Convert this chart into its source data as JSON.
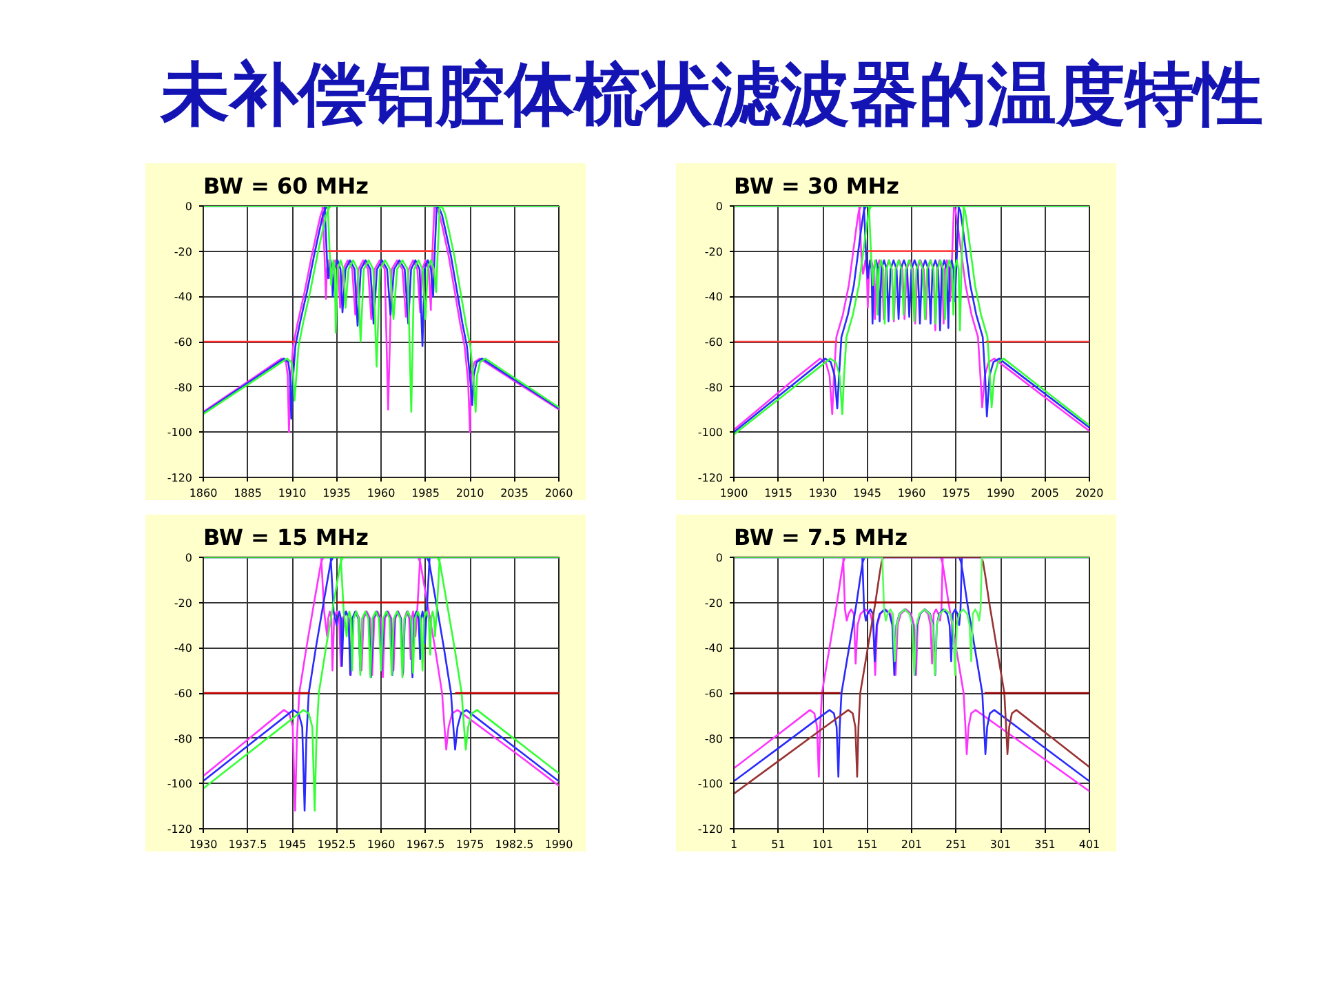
{
  "chart_data": [
    {
      "type": "line",
      "title": "未补偿铝腔体梳状滤波器的温度特性",
      "subtitle": "BW = 60 MHz",
      "xlim": [
        1860,
        2060
      ],
      "xticks": [
        1860,
        1885,
        1910,
        1935,
        1960,
        1985,
        2010,
        2035,
        2060
      ],
      "ylim": [
        -120,
        0
      ],
      "yticks": [
        0,
        -20,
        -40,
        -60,
        -80,
        -100,
        -120
      ],
      "grid": true,
      "series": [
        {
          "color": "#ff33ff",
          "x": [
            1860,
            1875,
            1890,
            1904,
            1906.5,
            1907.5,
            1908.2,
            1909,
            1910.5,
            1913,
            1917,
            1921,
            1924,
            1926,
            1927.5,
            1929,
            1990,
            1991.5,
            1993,
            1995,
            1998,
            2001.5,
            2004.5,
            2007,
            2009,
            2010,
            2010.8,
            2012.5,
            2015.5,
            2025,
            2040,
            2060
          ],
          "values": [
            -91,
            -83,
            -75,
            -67.5,
            -69,
            -75,
            -100,
            -78,
            -62,
            -52,
            -38,
            -22,
            -11,
            -4,
            -1,
            0,
            0,
            -1,
            -4,
            -11,
            -22,
            -38,
            -52,
            -62,
            -78,
            -100,
            -75,
            -69,
            -67.5,
            -72.3,
            -79.9,
            -90
          ]
        },
        {
          "color": "#ff33ff",
          "x": [
            1860,
            1927,
            1928.3,
            1929,
            1929.5,
            1930.25,
            1931,
            1931.5,
            1932.6,
            1934.25,
            1935.9,
            1937,
            1938.7,
            1941.25,
            1943.8,
            1945.5,
            1947.3,
            1950,
            1952.7,
            1954.5,
            1956.4,
            1959.25,
            1962.1,
            1964,
            1966,
            1969,
            1972,
            1974,
            1975.6,
            1978,
            1980.4,
            1982,
            1983.2,
            1985,
            1986.8,
            1988,
            1988.7,
            1990,
            2060
          ],
          "values": [
            0,
            0,
            -24,
            -41,
            -28,
            -24,
            -28,
            -32,
            -28,
            -24,
            -28,
            -45,
            -28,
            -24,
            -28,
            -48,
            -28,
            -24,
            -28,
            -50,
            -28,
            -24,
            -28,
            -90,
            -28,
            -24,
            -28,
            -49,
            -28,
            -24,
            -28,
            -47,
            -28,
            -24,
            -28,
            -46,
            -24,
            0,
            0
          ]
        },
        {
          "color": "#2a2aff",
          "x": [
            1860,
            1875,
            1890,
            1905.3,
            1907.8,
            1908.8,
            1909.5,
            1910.3,
            1911.8,
            1914.3,
            1918.3,
            1922.3,
            1925.3,
            1927.3,
            1928.8,
            1930.3,
            1991.3,
            1992.8,
            1994.3,
            1996.3,
            1999.3,
            2002.8,
            2005.8,
            2008.3,
            2010.3,
            2011.3,
            2012.1,
            2013.8,
            2016.8,
            2025,
            2040,
            2060
          ],
          "values": [
            -91.5,
            -83.5,
            -75.6,
            -67.5,
            -69,
            -75,
            -94,
            -78,
            -62,
            -52,
            -38,
            -22,
            -11,
            -4,
            -1,
            0,
            0,
            -1,
            -4,
            -11,
            -22,
            -38,
            -52,
            -62,
            -78,
            -88,
            -75,
            -69,
            -67.5,
            -71.7,
            -79.3,
            -89.5
          ]
        },
        {
          "color": "#2a2aff",
          "x": [
            1860,
            1928.3,
            1929.6,
            1930.3,
            1930.8,
            1931.55,
            1932.3,
            1932.8,
            1933.9,
            1935.55,
            1937.2,
            1938.3,
            1940,
            1942.55,
            1945.1,
            1946.8,
            1948.6,
            1951.3,
            1954,
            1955.8,
            1957.7,
            1960.55,
            1963.4,
            1965.3,
            1967.3,
            1970.3,
            1973.3,
            1975.3,
            1976.9,
            1979.3,
            1981.7,
            1983.3,
            1984.5,
            1986.3,
            1988.1,
            1989.3,
            1990,
            1991.3,
            2060
          ],
          "values": [
            0,
            0,
            -24,
            -32,
            -28,
            -24,
            -28,
            -40,
            -28,
            -24,
            -28,
            -47,
            -28,
            -24,
            -28,
            -53,
            -28,
            -24,
            -28,
            -52,
            -28,
            -24,
            -28,
            -48,
            -28,
            -24,
            -28,
            -52,
            -28,
            -24,
            -28,
            -62,
            -28,
            -24,
            -28,
            -40,
            -24,
            0,
            0
          ]
        },
        {
          "color": "#33ff33",
          "x": [
            1860,
            1875,
            1890,
            1907.1,
            1909.6,
            1910.6,
            1911.3,
            1912.1,
            1913.6,
            1916.1,
            1920.1,
            1924.1,
            1927.1,
            1929.1,
            1930.6,
            1932.1,
            1993.2,
            1994.7,
            1996.2,
            1998.2,
            2001.2,
            2004.7,
            2007.7,
            2010.2,
            2012.2,
            2013.2,
            2014,
            2015.7,
            2018.7,
            2025,
            2040,
            2060
          ],
          "values": [
            -92,
            -84.2,
            -76.4,
            -67.5,
            -69,
            -75,
            -86,
            -78,
            -62,
            -52,
            -38,
            -22,
            -11,
            -4,
            -1,
            0,
            0,
            -1,
            -4,
            -11,
            -22,
            -38,
            -52,
            -62,
            -78,
            -91,
            -75,
            -69,
            -67.5,
            -70.8,
            -78.6,
            -89
          ]
        },
        {
          "color": "#33ff33",
          "x": [
            1860,
            1930,
            1931.3,
            1932,
            1932.5,
            1933.25,
            1934,
            1934.5,
            1935.6,
            1937.25,
            1938.9,
            1940,
            1941.7,
            1944.25,
            1946.8,
            1948.5,
            1950.3,
            1953,
            1955.7,
            1957.5,
            1959.4,
            1962.25,
            1965.1,
            1967,
            1969,
            1972,
            1975,
            1977,
            1978.6,
            1981,
            1983.4,
            1985,
            1986.2,
            1988,
            1989.8,
            1991,
            1991.7,
            1993,
            2060
          ],
          "values": [
            0,
            0,
            -24,
            -35,
            -28,
            -24,
            -28,
            -56,
            -28,
            -24,
            -28,
            -45,
            -28,
            -24,
            -28,
            -60,
            -28,
            -24,
            -28,
            -71,
            -28,
            -24,
            -28,
            -50,
            -28,
            -24,
            -28,
            -91,
            -28,
            -24,
            -28,
            -50,
            -28,
            -24,
            -28,
            -38,
            -24,
            0,
            0
          ]
        },
        {
          "color": "#ff3030",
          "x": [
            1860,
            1912,
            1921,
            1930,
            1990,
            2000,
            2009,
            2060
          ],
          "values": [
            -60,
            -60,
            null,
            -20,
            -20,
            null,
            -60,
            -60
          ]
        }
      ]
    },
    {
      "type": "line",
      "subtitle": "BW = 30 MHz",
      "xlim": [
        1900,
        2020
      ],
      "xticks": [
        1900,
        1915,
        1930,
        1945,
        1960,
        1975,
        1990,
        2005,
        2020
      ],
      "ylim": [
        -120,
        0
      ],
      "yticks": [
        0,
        -20,
        -40,
        -60,
        -80,
        -100,
        -120
      ],
      "grid": true,
      "series": [
        {
          "color": "#ff33ff",
          "x": [
            1900,
            1910,
            1920,
            1929.1,
            1931,
            1932.3,
            1933.2,
            1933.8,
            1934.6,
            1936.8,
            1938.8,
            1940.3,
            1941.5,
            1942.2,
            1943,
            1974,
            1974.8,
            1975.5,
            1976.7,
            1978.2,
            1980.2,
            1982.4,
            1983.2,
            1983.8,
            1984.7,
            1986,
            1987.9,
            2000,
            2010,
            2020
          ],
          "values": [
            -99,
            -88,
            -77,
            -67.5,
            -69,
            -75,
            -92,
            -75,
            -58,
            -48,
            -35,
            -20,
            -8,
            -2,
            0,
            0,
            -2,
            -8,
            -20,
            -35,
            -48,
            -58,
            -75,
            -89,
            -75,
            -69,
            -67.5,
            -79.6,
            -89.6,
            -99.5
          ]
        },
        {
          "color": "#ff33ff",
          "x": [
            1900,
            1942.3,
            1943.1,
            1943.6,
            1943.92,
            1944.4,
            1944.88,
            1945.2,
            1945.68,
            1946.4,
            1947.12,
            1947.6,
            1948.2,
            1949.1,
            1950,
            1950.6,
            1951.28,
            1952.3,
            1953.32,
            1954,
            1954.72,
            1955.8,
            1956.88,
            1957.6,
            1958.32,
            1959.4,
            1960.48,
            1961.2,
            1961.92,
            1963,
            1964.08,
            1964.8,
            1965.44,
            1966.4,
            1967.36,
            1968,
            1968.56,
            1969.4,
            1970.24,
            1970.8,
            1971.24,
            1971.9,
            1972.56,
            1973,
            1973.6,
            1974.3,
            2020
          ],
          "values": [
            0,
            0,
            -24,
            -30,
            -28,
            -24,
            -28,
            -45,
            -28,
            -24,
            -28,
            -50,
            -28,
            -24,
            -28,
            -50,
            -28,
            -24,
            -28,
            -51,
            -28,
            -24,
            -28,
            -50,
            -28,
            -24,
            -28,
            -52,
            -28,
            -24,
            -28,
            -50,
            -28,
            -24,
            -28,
            -55,
            -28,
            -24,
            -28,
            -52,
            -28,
            -24,
            -28,
            -42,
            -24,
            0,
            0
          ]
        },
        {
          "color": "#2a2aff",
          "x": [
            1900,
            1910,
            1920,
            1930.8,
            1932.7,
            1934,
            1934.9,
            1935.5,
            1936.3,
            1938.5,
            1940.5,
            1942,
            1943.2,
            1943.9,
            1944.7,
            1975.6,
            1976.4,
            1977.1,
            1978.3,
            1979.8,
            1981.8,
            1984,
            1984.8,
            1985.4,
            1986.3,
            1987.6,
            1989.5,
            2000,
            2010,
            2020
          ],
          "values": [
            -100,
            -89.4,
            -78.9,
            -67.5,
            -69,
            -75,
            -89.5,
            -75,
            -58,
            -48,
            -35,
            -20,
            -8,
            -2,
            0,
            0,
            -2,
            -8,
            -20,
            -35,
            -48,
            -58,
            -75,
            -93,
            -75,
            -69,
            -67.5,
            -78,
            -88,
            -98
          ]
        },
        {
          "color": "#2a2aff",
          "x": [
            1900,
            1943.9,
            1944.7,
            1945.2,
            1945.52,
            1946,
            1946.48,
            1946.8,
            1947.28,
            1948,
            1948.72,
            1949.2,
            1949.8,
            1950.7,
            1951.6,
            1952.2,
            1952.88,
            1953.9,
            1954.92,
            1955.6,
            1956.32,
            1957.4,
            1958.48,
            1959.2,
            1959.92,
            1961,
            1962.08,
            1962.8,
            1963.52,
            1964.6,
            1965.68,
            1966.4,
            1967.04,
            1968,
            1968.96,
            1969.6,
            1970.16,
            1971,
            1971.84,
            1972.4,
            1972.84,
            1973.5,
            1974.16,
            1974.6,
            1975.2,
            1975.9,
            2020
          ],
          "values": [
            0,
            0,
            -24,
            -32,
            -28,
            -24,
            -28,
            -52,
            -28,
            -24,
            -28,
            -51,
            -28,
            -24,
            -28,
            -51,
            -28,
            -24,
            -28,
            -50,
            -28,
            -24,
            -28,
            -49,
            -28,
            -24,
            -28,
            -52,
            -28,
            -24,
            -28,
            -52,
            -28,
            -24,
            -28,
            -55,
            -28,
            -24,
            -28,
            -54,
            -28,
            -24,
            -28,
            -42,
            -24,
            0,
            0
          ]
        },
        {
          "color": "#33ff33",
          "x": [
            1900,
            1910,
            1920,
            1932.5,
            1934.4,
            1935.7,
            1936.6,
            1937.2,
            1938,
            1940.2,
            1942.2,
            1943.7,
            1944.9,
            1945.6,
            1946.4,
            1977.2,
            1978,
            1978.7,
            1979.9,
            1981.4,
            1983.4,
            1985.6,
            1986.4,
            1987,
            1987.9,
            1989.2,
            1991.1,
            2000,
            2010,
            2020
          ],
          "values": [
            -101,
            -90.7,
            -80.4,
            -67.5,
            -69,
            -75,
            -92,
            -75,
            -58,
            -48,
            -35,
            -20,
            -8,
            -2,
            0,
            0,
            -2,
            -8,
            -20,
            -35,
            -48,
            -58,
            -75,
            -89,
            -75,
            -69,
            -67.5,
            -76.6,
            -86.8,
            -97
          ]
        },
        {
          "color": "#33ff33",
          "x": [
            1900,
            1945.6,
            1946.4,
            1946.9,
            1947.22,
            1947.7,
            1948.18,
            1948.5,
            1948.98,
            1949.7,
            1950.42,
            1950.9,
            1951.5,
            1952.4,
            1953.3,
            1953.9,
            1954.58,
            1955.6,
            1956.62,
            1957.3,
            1958.02,
            1959.1,
            1960.18,
            1960.9,
            1961.62,
            1962.7,
            1963.78,
            1964.5,
            1965.22,
            1966.3,
            1967.38,
            1968.1,
            1968.74,
            1969.7,
            1970.66,
            1971.3,
            1971.86,
            1972.7,
            1973.54,
            1974.1,
            1974.54,
            1975.2,
            1975.86,
            1976.3,
            1976.9,
            1977.6,
            2020
          ],
          "values": [
            0,
            0,
            -24,
            -35,
            -28,
            -24,
            -28,
            -48,
            -28,
            -24,
            -28,
            -52,
            -28,
            -24,
            -28,
            -50,
            -28,
            -24,
            -28,
            -48,
            -28,
            -24,
            -28,
            -51,
            -28,
            -24,
            -28,
            -50,
            -28,
            -24,
            -28,
            -52,
            -28,
            -24,
            -28,
            -50,
            -28,
            -24,
            -28,
            -48,
            -28,
            -24,
            -28,
            -55,
            -24,
            0,
            0
          ]
        },
        {
          "color": "#ff4040",
          "x": [
            1900,
            1935,
            1940,
            1945,
            1975,
            1980,
            1985,
            2020
          ],
          "values": [
            -60,
            -60,
            null,
            -20,
            -20,
            null,
            -60,
            -60
          ]
        }
      ]
    },
    {
      "type": "line",
      "subtitle": "BW = 15 MHz",
      "xlim": [
        1930,
        1990
      ],
      "xticks": [
        1930,
        1937.5,
        1945,
        1952.5,
        1960,
        1967.5,
        1975,
        1982.5,
        1990
      ],
      "ylim": [
        -120,
        0
      ],
      "yticks": [
        0,
        -20,
        -40,
        -60,
        -80,
        -100,
        -120
      ],
      "grid": true,
      "series": [
        {
          "color": "#ff33ff",
          "x": [
            1930,
            1937.5,
            1943.6,
            1944.5,
            1945.1,
            1945.5,
            1945.8,
            1946.2,
            1947.4,
            1948.7,
            1949.5,
            1949.9,
            1950.3,
            1966.2,
            1966.6,
            1967,
            1967.8,
            1969.1,
            1970.3,
            1970.7,
            1971,
            1971.4,
            1972,
            1972.9,
            1982.5,
            1990
          ],
          "values": [
            -96.7,
            -80.6,
            -67.5,
            -69,
            -75,
            -112,
            -80,
            -60,
            -40,
            -20,
            -8,
            -2,
            0,
            0,
            -2,
            -8,
            -20,
            -40,
            -60,
            -75,
            -85,
            -75,
            -69,
            -67.5,
            -86.1,
            -101
          ]
        },
        {
          "color": "#ff33ff",
          "x": [
            1930,
            1949.9,
            1950.4,
            1950.9,
            1951.08,
            1951.35,
            1951.62,
            1951.8,
            1952.08,
            1952.5,
            1952.92,
            1953.2,
            1953.54,
            1954.05,
            1954.56,
            1954.9,
            1955.26,
            1955.8,
            1956.34,
            1956.7,
            1957.06,
            1957.6,
            1958.14,
            1958.5,
            1958.86,
            1959.4,
            1959.94,
            1960.3,
            1960.66,
            1961.2,
            1961.74,
            1962.1,
            1962.42,
            1962.9,
            1963.38,
            1963.7,
            1963.96,
            1964.35,
            1964.74,
            1965,
            1965.16,
            1965.4,
            1965.64,
            1965.8,
            1966.1,
            1966.6,
            1990
          ],
          "values": [
            0,
            0,
            -24,
            -35,
            -27,
            -24,
            -27,
            -50,
            -27,
            -24,
            -27,
            -48,
            -27,
            -24,
            -27,
            -52,
            -27,
            -24,
            -27,
            -50,
            -27,
            -24,
            -27,
            -52,
            -27,
            -24,
            -27,
            -53,
            -27,
            -24,
            -27,
            -50,
            -27,
            -24,
            -27,
            -52,
            -27,
            -24,
            -27,
            -45,
            -27,
            -24,
            -27,
            -35,
            -24,
            0,
            0
          ]
        },
        {
          "color": "#2a2aff",
          "x": [
            1930,
            1937.5,
            1945.2,
            1946.1,
            1946.7,
            1947.1,
            1947.4,
            1947.8,
            1949,
            1950.3,
            1951.1,
            1951.5,
            1951.9,
            1967.7,
            1968.1,
            1968.5,
            1969.3,
            1970.6,
            1971.8,
            1972.2,
            1972.5,
            1972.9,
            1973.5,
            1974.4,
            1982.5,
            1990
          ],
          "values": [
            -98.9,
            -83.4,
            -67.5,
            -69,
            -75,
            -112,
            -80,
            -60,
            -40,
            -20,
            -8,
            -2,
            0,
            0,
            -2,
            -8,
            -20,
            -40,
            -60,
            -75,
            -85,
            -75,
            -69,
            -67.5,
            -83.9,
            -99
          ]
        },
        {
          "color": "#2a2aff",
          "x": [
            1930,
            1951.5,
            1952,
            1952.5,
            1952.68,
            1952.95,
            1953.22,
            1953.4,
            1953.68,
            1954.1,
            1954.52,
            1954.8,
            1955.14,
            1955.65,
            1956.16,
            1956.5,
            1956.86,
            1957.4,
            1957.94,
            1958.3,
            1958.66,
            1959.2,
            1959.74,
            1960.1,
            1960.46,
            1961,
            1961.54,
            1961.9,
            1962.26,
            1962.8,
            1963.34,
            1963.7,
            1964.02,
            1964.5,
            1964.98,
            1965.3,
            1965.56,
            1965.95,
            1966.34,
            1966.6,
            1966.76,
            1967,
            1967.24,
            1967.4,
            1967.7,
            1968.2,
            1990
          ],
          "values": [
            0,
            0,
            -24,
            -30,
            -27,
            -24,
            -27,
            -48,
            -27,
            -24,
            -27,
            -52,
            -27,
            -24,
            -27,
            -50,
            -27,
            -24,
            -27,
            -53,
            -27,
            -24,
            -27,
            -50,
            -27,
            -24,
            -27,
            -52,
            -27,
            -24,
            -27,
            -51,
            -27,
            -24,
            -27,
            -53,
            -27,
            -24,
            -27,
            -45,
            -27,
            -24,
            -27,
            -38,
            -24,
            0,
            0
          ]
        },
        {
          "color": "#33ff33",
          "x": [
            1930,
            1937.5,
            1946.9,
            1947.8,
            1948.4,
            1948.8,
            1949.1,
            1949.5,
            1950.7,
            1952,
            1952.8,
            1953.2,
            1953.6,
            1969.5,
            1969.9,
            1970.3,
            1971.1,
            1972.4,
            1973.6,
            1974,
            1974.3,
            1974.7,
            1975.3,
            1976.2,
            1982.5,
            1990
          ],
          "values": [
            -102.2,
            -86.8,
            -67.5,
            -69,
            -75,
            -112,
            -80,
            -60,
            -40,
            -20,
            -8,
            -2,
            0,
            0,
            -2,
            -8,
            -20,
            -40,
            -60,
            -75,
            -85,
            -75,
            -69,
            -67.5,
            -80.3,
            -95.5
          ]
        },
        {
          "color": "#33ff33",
          "x": [
            1930,
            1953.2,
            1953.7,
            1954.2,
            1954.38,
            1954.65,
            1954.92,
            1955.1,
            1955.38,
            1955.8,
            1956.22,
            1956.5,
            1956.84,
            1957.35,
            1957.86,
            1958.2,
            1958.56,
            1959.1,
            1959.64,
            1960,
            1960.36,
            1960.9,
            1961.44,
            1961.8,
            1962.16,
            1962.7,
            1963.24,
            1963.6,
            1963.96,
            1964.5,
            1965.04,
            1965.4,
            1965.72,
            1966.2,
            1966.68,
            1967,
            1967.26,
            1967.65,
            1968.04,
            1968.3,
            1968.46,
            1968.7,
            1968.94,
            1969.1,
            1969.4,
            1969.9,
            1990
          ],
          "values": [
            0,
            0,
            -24,
            -35,
            -27,
            -24,
            -27,
            -50,
            -27,
            -24,
            -27,
            -52,
            -27,
            -24,
            -27,
            -53,
            -27,
            -24,
            -27,
            -50,
            -27,
            -24,
            -27,
            -52,
            -27,
            -24,
            -27,
            -53,
            -27,
            -24,
            -27,
            -51,
            -27,
            -24,
            -27,
            -50,
            -27,
            -24,
            -27,
            -43,
            -27,
            -24,
            -27,
            -35,
            -24,
            0,
            0
          ]
        },
        {
          "color": "#cc0000",
          "x": [
            1930,
            1948,
            1950,
            1952.5,
            1967.5,
            1970,
            1972.5,
            1990
          ],
          "values": [
            -60,
            -60,
            null,
            -20,
            -20,
            null,
            -60,
            -60
          ]
        }
      ]
    },
    {
      "type": "line",
      "subtitle": "BW = 7.5 MHz",
      "xlim": [
        1,
        401
      ],
      "xticks": [
        1,
        51,
        101,
        151,
        201,
        251,
        301,
        351,
        401
      ],
      "ylim": [
        -120,
        0
      ],
      "yticks": [
        0,
        -20,
        -40,
        -60,
        -80,
        -100,
        -120
      ],
      "grid": true,
      "series": [
        {
          "color": "#ff33ff",
          "x": [
            1,
            51,
            86.6,
            91.6,
            94.6,
            96.6,
            98.1,
            100.1,
            108.6,
            117.1,
            121.6,
            124.1,
            126.1,
            233.5,
            235.5,
            238,
            242.5,
            251,
            259.5,
            261.5,
            263,
            265,
            268,
            273,
            301,
            351,
            401
          ],
          "values": [
            -93.3,
            -78.3,
            -67.5,
            -69,
            -75,
            -97,
            -75,
            -60,
            -40,
            -20,
            -8,
            -2,
            0,
            0,
            -2,
            -8,
            -20,
            -40,
            -60,
            -75,
            -87,
            -75,
            -69,
            -67.5,
            -75.4,
            -89.4,
            -103.4
          ]
        },
        {
          "color": "#ff33ff",
          "x": [
            1,
            124,
            126,
            128,
            130,
            133,
            136,
            138,
            140.2,
            143.5,
            149,
            154.5,
            157.8,
            160,
            162.3,
            165.75,
            171.5,
            177.25,
            180.7,
            183,
            185.3,
            188.75,
            194.5,
            200.25,
            203.7,
            206,
            207.8,
            210.5,
            215,
            219.5,
            222.2,
            224,
            225.8,
            228.5,
            231.2,
            233,
            234.5,
            236,
            401
          ],
          "values": [
            0,
            0,
            -23,
            -28,
            -25,
            -23,
            -25,
            -47,
            -30,
            -25,
            -23,
            -25,
            -30,
            -52,
            -30,
            -25,
            -23,
            -25,
            -30,
            -52,
            -30,
            -25,
            -23,
            -25,
            -30,
            -52,
            -30,
            -25,
            -23,
            -25,
            -30,
            -47,
            -25,
            -23,
            -25,
            -28,
            -23,
            0,
            0
          ]
        },
        {
          "color": "#2a2aff",
          "x": [
            1,
            51,
            101,
            108.6,
            113.6,
            116.6,
            118.6,
            120.1,
            122.1,
            130.6,
            139.1,
            143.6,
            146.1,
            148.1,
            254.5,
            256.5,
            259,
            263.5,
            272,
            280.5,
            282.5,
            284,
            286,
            289,
            294,
            351,
            401
          ],
          "values": [
            -99,
            -84.4,
            -69.7,
            -67.5,
            -69,
            -75,
            -97,
            -75,
            -60,
            -40,
            -20,
            -8,
            -2,
            0,
            0,
            -2,
            -8,
            -20,
            -40,
            -60,
            -75,
            -87,
            -75,
            -69,
            -67.5,
            -84.3,
            -99
          ]
        },
        {
          "color": "#2a2aff",
          "x": [
            1,
            145.5,
            147.5,
            149.5,
            151.5,
            154.5,
            157.5,
            159.5,
            161.7,
            165,
            170.5,
            176,
            179.3,
            181.5,
            183.8,
            187.25,
            193,
            198.75,
            202.2,
            204.5,
            206.8,
            210.25,
            216,
            221.75,
            225.2,
            227.5,
            229.3,
            232,
            236.5,
            241,
            243.7,
            245.5,
            247.3,
            250,
            252.7,
            254.5,
            256,
            257.5,
            401
          ],
          "values": [
            0,
            0,
            -23,
            -28,
            -25,
            -23,
            -25,
            -46,
            -30,
            -25,
            -23,
            -25,
            -30,
            -52,
            -30,
            -25,
            -23,
            -25,
            -30,
            -52,
            -30,
            -25,
            -23,
            -25,
            -30,
            -52,
            -30,
            -25,
            -23,
            -25,
            -30,
            -46,
            -25,
            -23,
            -25,
            -30,
            -23,
            0,
            0
          ]
        },
        {
          "color": "#993333",
          "x": [
            1,
            51,
            101,
            129.7,
            134.7,
            137.7,
            139.7,
            141.2,
            143.2,
            151.7,
            160.2,
            164.7,
            167.2,
            169.2,
            279.3,
            281.3,
            283.8,
            288.3,
            296.8,
            305.3,
            307.3,
            308.8,
            310.8,
            313.8,
            318.8,
            351,
            401
          ],
          "values": [
            -104.5,
            -90.1,
            -75.7,
            -67.5,
            -69,
            -75,
            -97,
            -75,
            -60,
            -40,
            -20,
            -8,
            -2,
            0,
            0,
            -2,
            -8,
            -20,
            -40,
            -60,
            -75,
            -87,
            -75,
            -69,
            -67.5,
            -77.4,
            -92.7
          ]
        },
        {
          "color": "#55ff55",
          "x": [
            1,
            168,
            170,
            172,
            174,
            177,
            180,
            182,
            184.2,
            187.5,
            193,
            198.5,
            201.8,
            204,
            206.3,
            209.75,
            215.5,
            221.25,
            224.7,
            227,
            229.3,
            232.75,
            238.5,
            244.25,
            247.7,
            250,
            251.8,
            254.5,
            259,
            263.5,
            266.2,
            268,
            269.8,
            272.5,
            275.2,
            277,
            278.5,
            280,
            401
          ],
          "values": [
            0,
            0,
            -23,
            -28,
            -25,
            -23,
            -25,
            -46,
            -30,
            -25,
            -23,
            -25,
            -30,
            -52,
            -30,
            -25,
            -23,
            -25,
            -30,
            -52,
            -30,
            -25,
            -23,
            -25,
            -30,
            -52,
            -30,
            -25,
            -23,
            -25,
            -30,
            -46,
            -25,
            -23,
            -25,
            -28,
            -23,
            0,
            0
          ]
        },
        {
          "color": "#990000",
          "x": [
            1,
            121,
            136,
            151,
            251,
            267,
            283,
            401
          ],
          "values": [
            -60,
            -60,
            null,
            -20,
            -20,
            null,
            -60,
            -60
          ]
        }
      ]
    }
  ]
}
